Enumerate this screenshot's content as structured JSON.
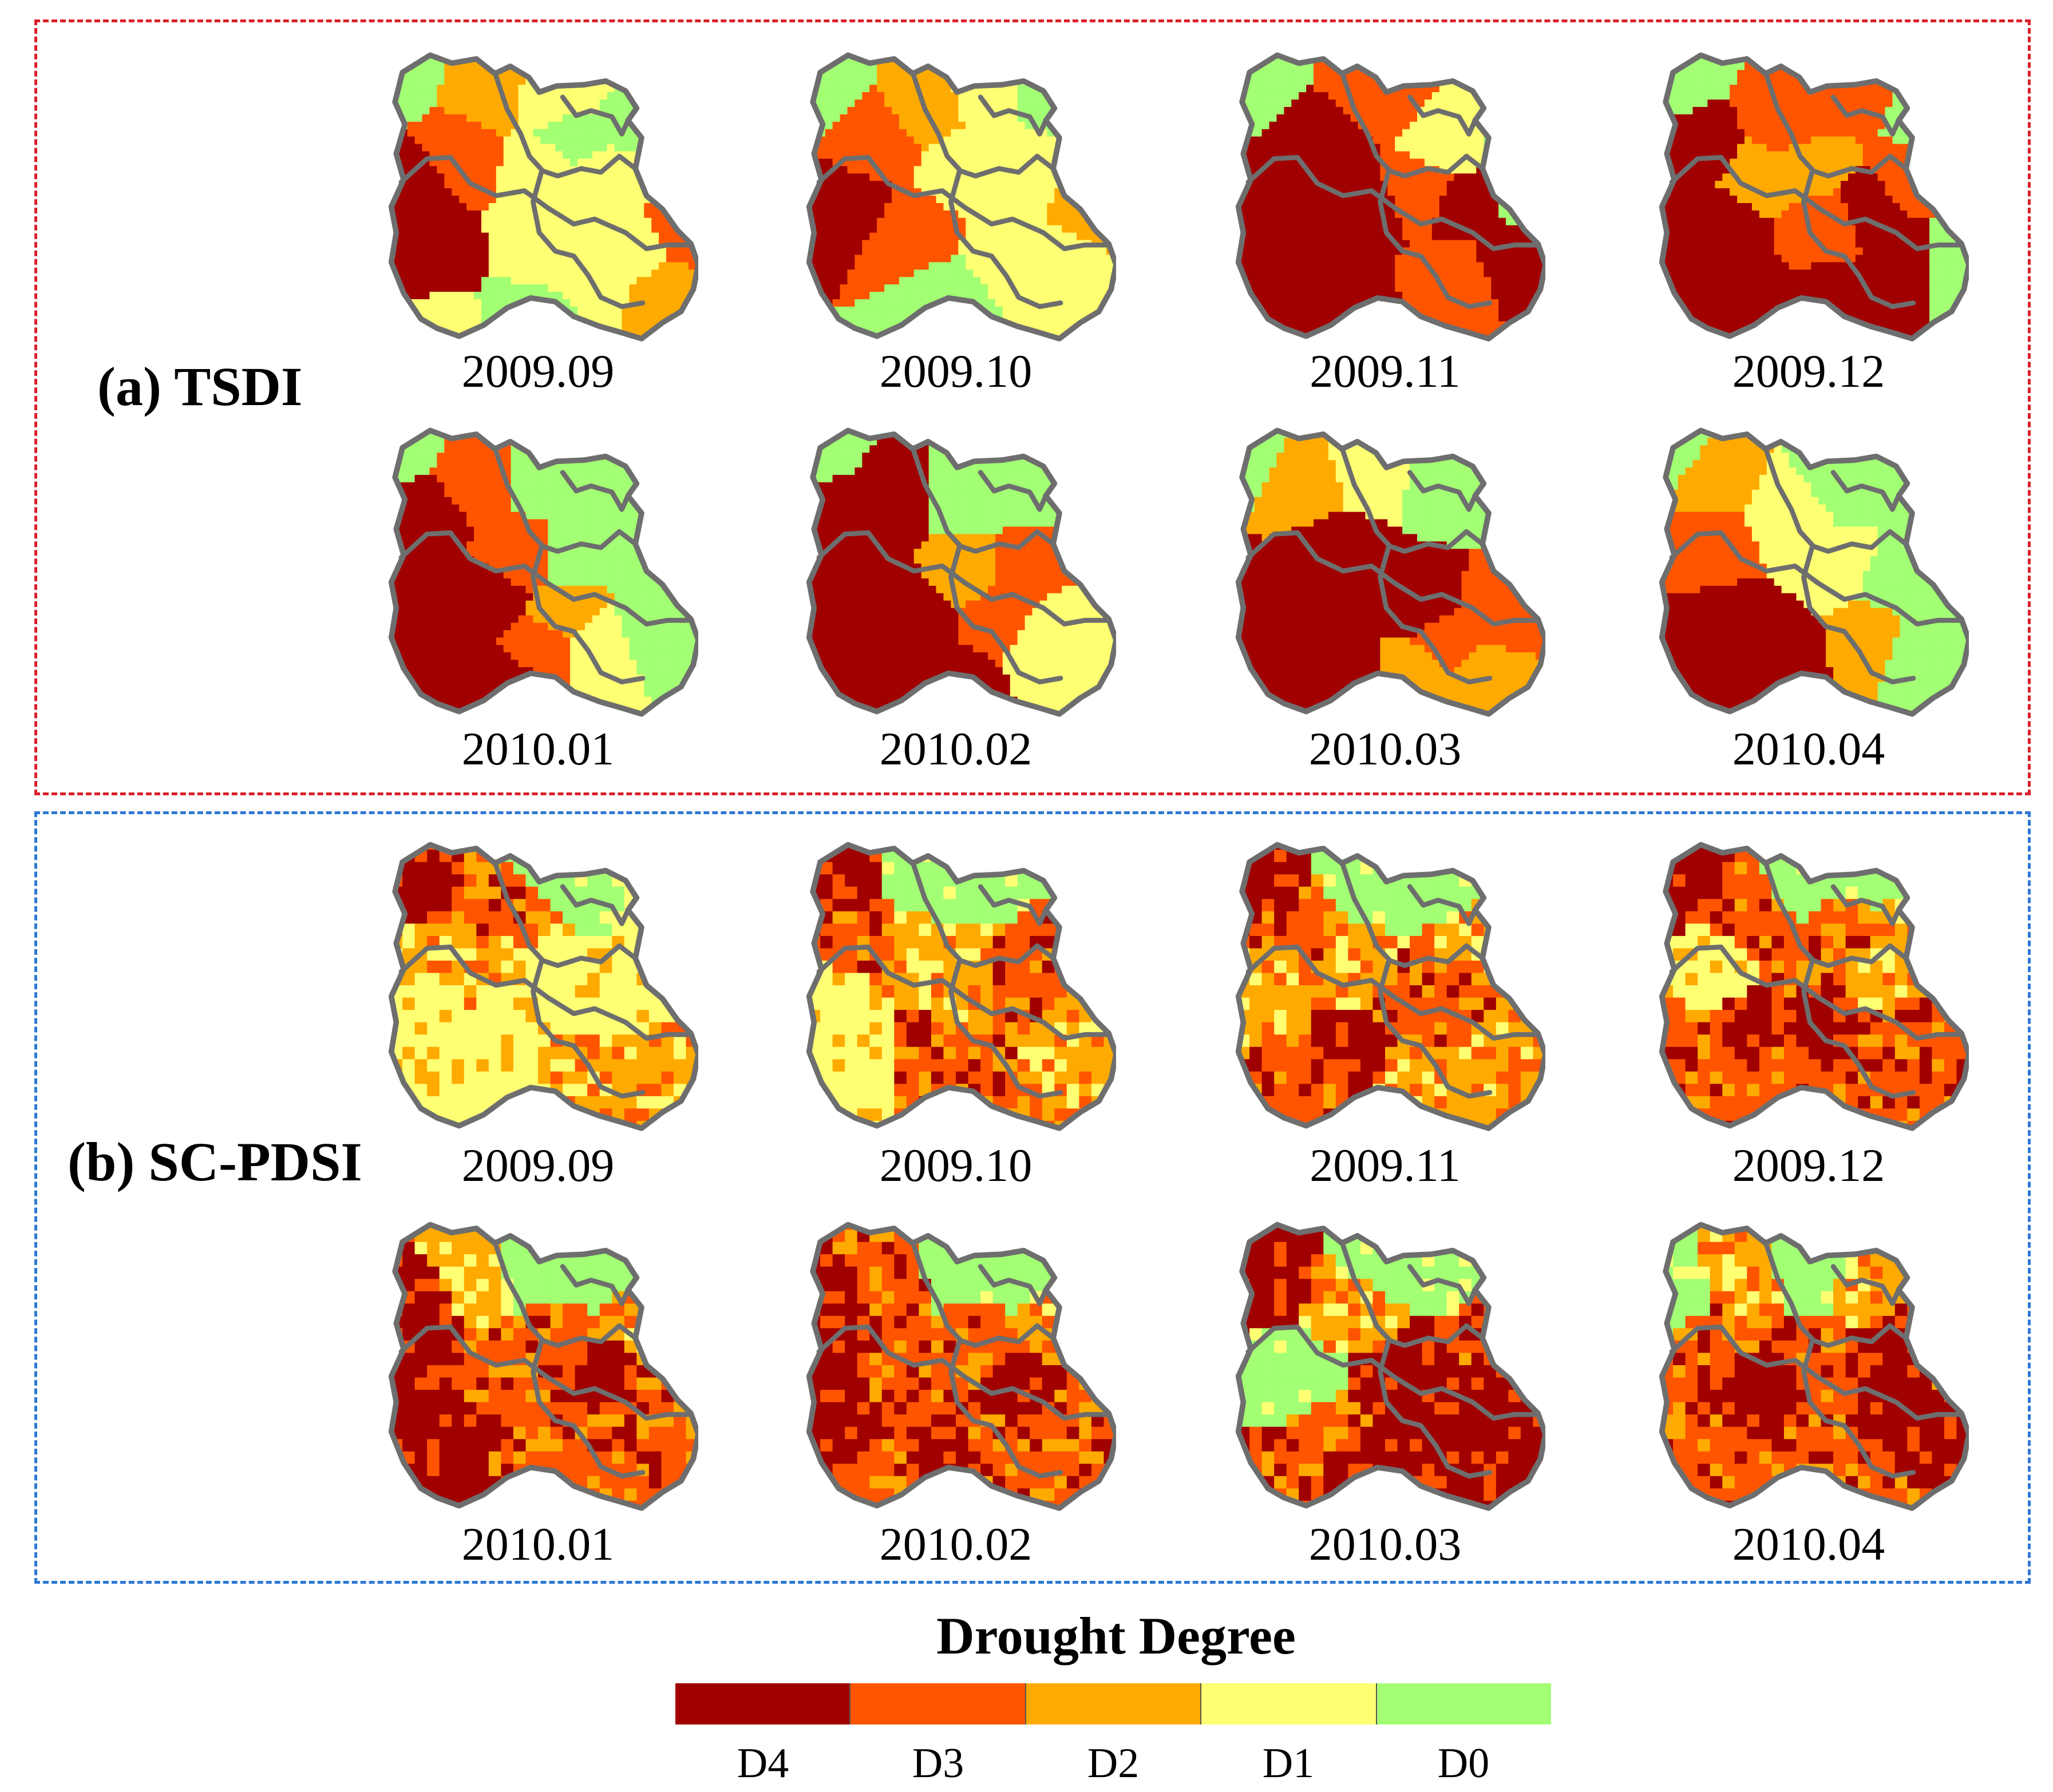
{
  "panels": [
    {
      "label": "(a) TSDI",
      "style": "smooth",
      "dates": [
        "2009.09",
        "2009.10",
        "2009.11",
        "2009.12",
        "2010.01",
        "2010.02",
        "2010.03",
        "2010.04"
      ]
    },
    {
      "label": "(b) SC-PDSI",
      "style": "pixelated",
      "dates": [
        "2009.09",
        "2009.10",
        "2009.11",
        "2009.12",
        "2010.01",
        "2010.02",
        "2010.03",
        "2010.04"
      ]
    }
  ],
  "legend": {
    "title": "Drought Degree",
    "classes": [
      {
        "label": "D4",
        "color": "#a00000"
      },
      {
        "label": "D3",
        "color": "#ff5500"
      },
      {
        "label": "D2",
        "color": "#ffaa00"
      },
      {
        "label": "D1",
        "color": "#ffff73"
      },
      {
        "label": "D0",
        "color": "#a3ff73"
      }
    ]
  },
  "boundary_color": "#6e6e6e"
}
